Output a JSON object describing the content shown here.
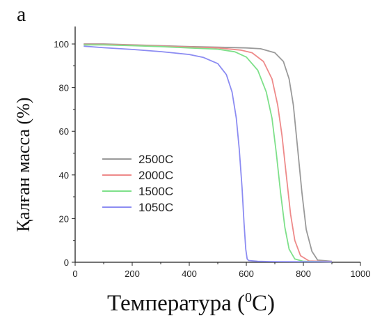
{
  "panel_label": "a",
  "chart_data": {
    "type": "line",
    "title": "",
    "xlabel_prefix": "Температура (",
    "xlabel_sup": "0",
    "xlabel_suffix": "C)",
    "ylabel": "Қалған масса (%)",
    "xlim": [
      0,
      1000
    ],
    "ylim": [
      0,
      108
    ],
    "xticks": [
      0,
      200,
      400,
      600,
      800,
      1000
    ],
    "yticks": [
      0,
      20,
      40,
      60,
      80,
      100
    ],
    "grid": false,
    "legend_position": "center-left",
    "series": [
      {
        "name": "2500C",
        "color": "#9a9a9a",
        "x": [
          30,
          100,
          200,
          300,
          400,
          500,
          600,
          650,
          700,
          730,
          750,
          765,
          780,
          795,
          810,
          830,
          850,
          900
        ],
        "y": [
          100,
          100,
          99.6,
          99.2,
          98.8,
          98.5,
          98.2,
          97.8,
          96,
          92,
          84,
          72,
          52,
          32,
          15,
          5,
          1,
          0.4
        ]
      },
      {
        "name": "2000C",
        "color": "#ee8a8a",
        "x": [
          30,
          100,
          200,
          300,
          400,
          500,
          580,
          620,
          660,
          690,
          710,
          725,
          740,
          755,
          770,
          790,
          820,
          900
        ],
        "y": [
          99.8,
          99.8,
          99.5,
          99,
          98.6,
          98.2,
          97.2,
          96,
          92,
          84,
          72,
          58,
          40,
          22,
          10,
          3,
          0.6,
          0.3
        ]
      },
      {
        "name": "1500C",
        "color": "#7ee08a",
        "x": [
          30,
          100,
          200,
          300,
          400,
          500,
          560,
          600,
          640,
          670,
          690,
          705,
          720,
          735,
          750,
          770,
          800,
          900
        ],
        "y": [
          99.6,
          99.6,
          99.2,
          98.8,
          98.2,
          97.6,
          96.4,
          94,
          88,
          78,
          66,
          50,
          32,
          16,
          6,
          1.5,
          0.4,
          0.2
        ]
      },
      {
        "name": "1050C",
        "color": "#8c8cf2",
        "x": [
          30,
          100,
          200,
          300,
          400,
          450,
          500,
          530,
          550,
          565,
          575,
          585,
          592,
          598,
          603,
          608,
          640,
          700,
          900
        ],
        "y": [
          99,
          98.3,
          97.5,
          96.5,
          95.2,
          93.8,
          91,
          86,
          78,
          66,
          52,
          34,
          18,
          6,
          1.5,
          0.8,
          0.4,
          0.3,
          0.2
        ]
      }
    ]
  }
}
